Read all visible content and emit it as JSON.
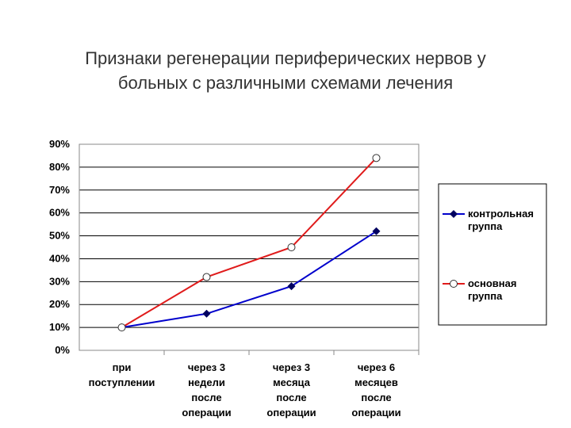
{
  "chart_data": {
    "type": "line",
    "title": "Признаки регенерации периферических  нервов у больных с различными схемами лечения",
    "categories": [
      [
        "при",
        "поступлении"
      ],
      [
        "через 3",
        "недели",
        "после",
        "операции"
      ],
      [
        "через 3",
        "месяца",
        "после",
        "операции"
      ],
      [
        "через 6",
        "месяцев",
        "после",
        "операции"
      ]
    ],
    "series": [
      {
        "name": "контрольная группа",
        "color": "#0000cc",
        "marker": "diamond",
        "values": [
          10,
          16,
          28,
          52
        ]
      },
      {
        "name": "основная группа",
        "color": "#e01b1b",
        "marker": "circle",
        "values": [
          10,
          32,
          45,
          84
        ]
      }
    ],
    "ylim": [
      0,
      90
    ],
    "yticks": [
      {
        "value": 0,
        "label": "0%"
      },
      {
        "value": 10,
        "label": "10%"
      },
      {
        "value": 20,
        "label": "20%"
      },
      {
        "value": 30,
        "label": "30%"
      },
      {
        "value": 40,
        "label": "40%"
      },
      {
        "value": 50,
        "label": "50%"
      },
      {
        "value": 60,
        "label": "60%"
      },
      {
        "value": 70,
        "label": "70%"
      },
      {
        "value": 80,
        "label": "80%"
      },
      {
        "value": 90,
        "label": "90%"
      }
    ],
    "grid": true,
    "legend": "right"
  }
}
